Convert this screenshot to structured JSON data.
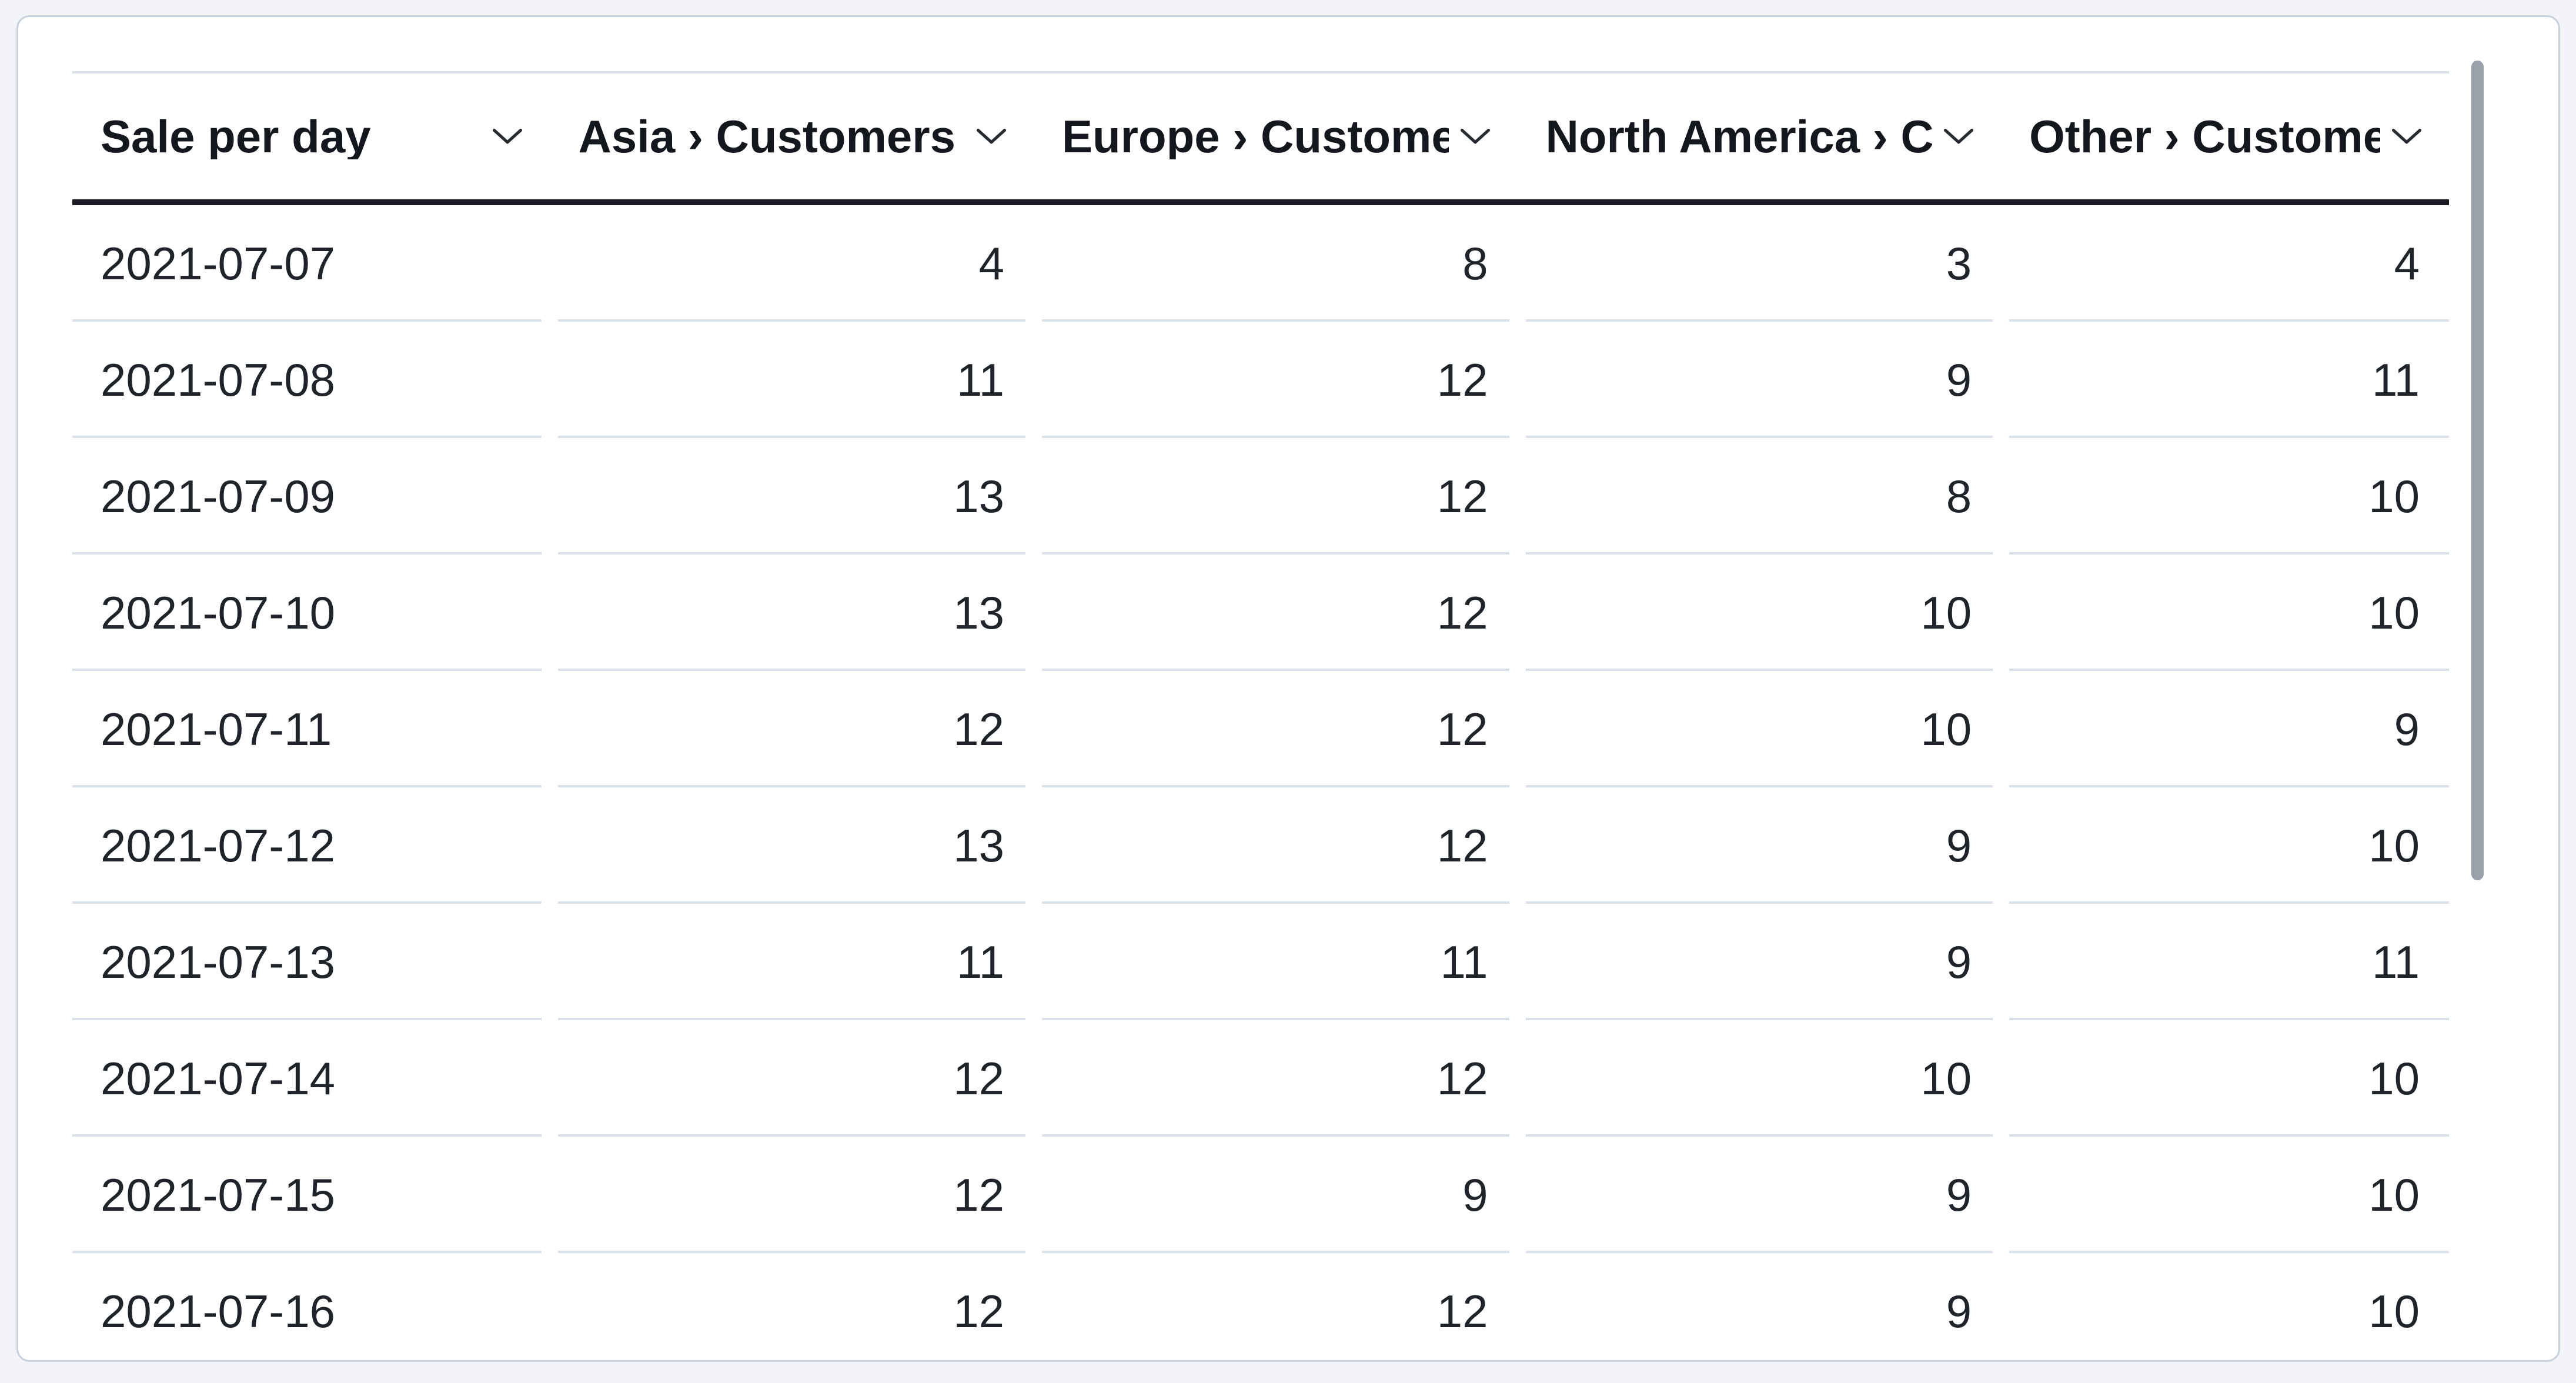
{
  "colors": {
    "page_bg": "#f2f4f7",
    "card_bg": "#ffffff",
    "card_border": "#c6d1dd",
    "header_text": "#14171d",
    "cell_text": "#1f232a",
    "header_bottom_border": "#181b21",
    "row_divider": "#d9e1ea",
    "scrollbar_thumb": "#9ba1aa"
  },
  "table": {
    "columns": [
      {
        "id": "sale_per_day",
        "label": "Sale per day",
        "rendered_label": "Sale per day",
        "align": "left",
        "sort_icon": "chevron-down"
      },
      {
        "id": "asia_customers",
        "label": "Asia › Customers",
        "rendered_label": "Asia › Customer",
        "align": "right",
        "sort_icon": "chevron-down"
      },
      {
        "id": "europe_customers",
        "label": "Europe › Customers",
        "rendered_label": "Europe › Custom",
        "align": "right",
        "sort_icon": "chevron-down"
      },
      {
        "id": "north_america_customers",
        "label": "North America › Customers",
        "rendered_label": "North America ›",
        "align": "right",
        "sort_icon": "chevron-down"
      },
      {
        "id": "other_customers",
        "label": "Other › Customers",
        "rendered_label": "Other › Custome",
        "align": "right",
        "sort_icon": "chevron-down"
      }
    ],
    "rows": [
      [
        "2021-07-07",
        "4",
        "8",
        "3",
        "4"
      ],
      [
        "2021-07-08",
        "11",
        "12",
        "9",
        "11"
      ],
      [
        "2021-07-09",
        "13",
        "12",
        "8",
        "10"
      ],
      [
        "2021-07-10",
        "13",
        "12",
        "10",
        "10"
      ],
      [
        "2021-07-11",
        "12",
        "12",
        "10",
        "9"
      ],
      [
        "2021-07-12",
        "13",
        "12",
        "9",
        "10"
      ],
      [
        "2021-07-13",
        "11",
        "11",
        "9",
        "11"
      ],
      [
        "2021-07-14",
        "12",
        "12",
        "10",
        "10"
      ],
      [
        "2021-07-15",
        "12",
        "9",
        "9",
        "10"
      ],
      [
        "2021-07-16",
        "12",
        "12",
        "9",
        "10"
      ]
    ]
  },
  "chart_data": {
    "type": "table",
    "columns": [
      "Sale per day",
      "Asia › Customers",
      "Europe › Customers",
      "North America › Customers",
      "Other › Customers"
    ],
    "rows": [
      [
        "2021-07-07",
        4,
        8,
        3,
        4
      ],
      [
        "2021-07-08",
        11,
        12,
        9,
        11
      ],
      [
        "2021-07-09",
        13,
        12,
        8,
        10
      ],
      [
        "2021-07-10",
        13,
        12,
        10,
        10
      ],
      [
        "2021-07-11",
        12,
        12,
        10,
        9
      ],
      [
        "2021-07-12",
        13,
        12,
        9,
        10
      ],
      [
        "2021-07-13",
        11,
        11,
        9,
        11
      ],
      [
        "2021-07-14",
        12,
        12,
        10,
        10
      ],
      [
        "2021-07-15",
        12,
        9,
        9,
        10
      ],
      [
        "2021-07-16",
        12,
        12,
        9,
        10
      ]
    ]
  },
  "scrollbar": {
    "orientation": "vertical"
  }
}
